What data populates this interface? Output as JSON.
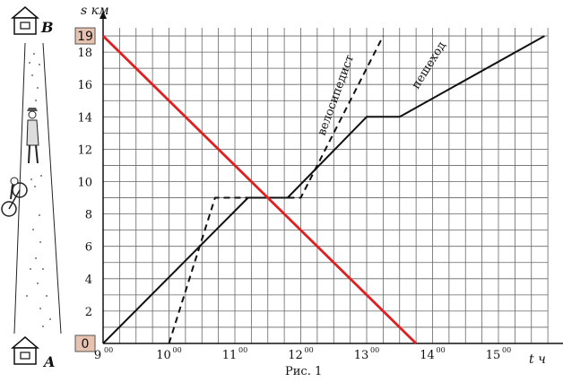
{
  "chart_data": {
    "type": "line",
    "title": "",
    "caption": "Рис. 1",
    "xlabel": "t ч",
    "ylabel": "s км",
    "xlim": [
      9,
      15.75
    ],
    "ylim": [
      0,
      19.5
    ],
    "grid": true,
    "x_ticks": [
      {
        "value": 9,
        "hour": "9",
        "minutes": "00"
      },
      {
        "value": 10,
        "hour": "10",
        "minutes": "00"
      },
      {
        "value": 11,
        "hour": "11",
        "minutes": "00"
      },
      {
        "value": 12,
        "hour": "12",
        "minutes": "00"
      },
      {
        "value": 13,
        "hour": "13",
        "minutes": "00"
      },
      {
        "value": 14,
        "hour": "14",
        "minutes": "00"
      },
      {
        "value": 15,
        "hour": "15",
        "minutes": "00"
      }
    ],
    "y_ticks": [
      2,
      4,
      6,
      8,
      10,
      12,
      14,
      16,
      18
    ],
    "highlighted_ticks": [
      {
        "value": 19,
        "label": "19"
      },
      {
        "value": 0,
        "label": "0"
      }
    ],
    "series": [
      {
        "name": "пешеход",
        "style": "solid",
        "color": "#111111",
        "points": [
          [
            9,
            0
          ],
          [
            11.2,
            9
          ],
          [
            11.8,
            9
          ],
          [
            13,
            14
          ],
          [
            13.5,
            14
          ],
          [
            15.7,
            19
          ]
        ]
      },
      {
        "name": "велосипедист",
        "style": "dashed",
        "color": "#111111",
        "points": [
          [
            10,
            0
          ],
          [
            10.7,
            9
          ],
          [
            11.4,
            9
          ],
          [
            11.7,
            9
          ],
          [
            12,
            9
          ],
          [
            13.25,
            19
          ]
        ]
      },
      {
        "style": "solid",
        "color": "#e02020",
        "points": [
          [
            9,
            19
          ],
          [
            13.75,
            0
          ]
        ]
      }
    ],
    "annotations": {
      "point_b": "B",
      "point_a": "A"
    }
  }
}
